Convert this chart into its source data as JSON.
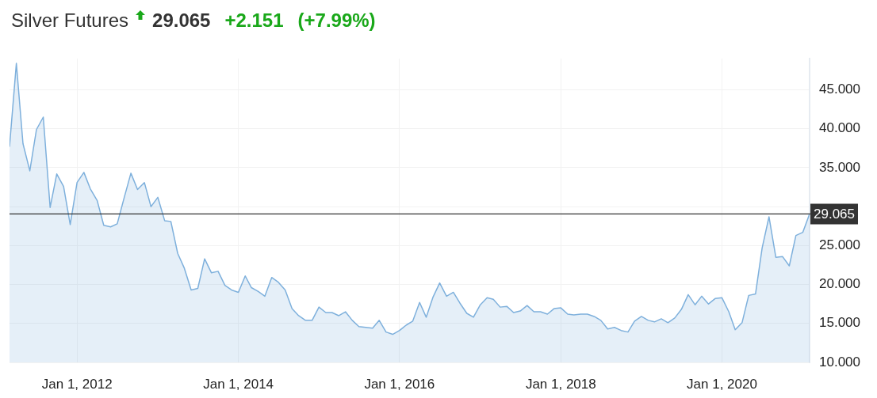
{
  "chart_data": {
    "type": "area",
    "title": "Silver Futures",
    "annotations": [
      "29.065",
      "+2.151",
      "(+7.99%)"
    ],
    "x": [
      "2011-03",
      "2011-04",
      "2011-05",
      "2011-06",
      "2011-07",
      "2011-08",
      "2011-09",
      "2011-10",
      "2011-11",
      "2011-12",
      "2012-01",
      "2012-02",
      "2012-03",
      "2012-04",
      "2012-05",
      "2012-06",
      "2012-07",
      "2012-08",
      "2012-09",
      "2012-10",
      "2012-11",
      "2012-12",
      "2013-01",
      "2013-02",
      "2013-03",
      "2013-04",
      "2013-05",
      "2013-06",
      "2013-07",
      "2013-08",
      "2013-09",
      "2013-10",
      "2013-11",
      "2013-12",
      "2014-01",
      "2014-02",
      "2014-03",
      "2014-04",
      "2014-05",
      "2014-06",
      "2014-07",
      "2014-08",
      "2014-09",
      "2014-10",
      "2014-11",
      "2014-12",
      "2015-01",
      "2015-02",
      "2015-03",
      "2015-04",
      "2015-05",
      "2015-06",
      "2015-07",
      "2015-08",
      "2015-09",
      "2015-10",
      "2015-11",
      "2015-12",
      "2016-01",
      "2016-02",
      "2016-03",
      "2016-04",
      "2016-05",
      "2016-06",
      "2016-07",
      "2016-08",
      "2016-09",
      "2016-10",
      "2016-11",
      "2016-12",
      "2017-01",
      "2017-02",
      "2017-03",
      "2017-04",
      "2017-05",
      "2017-06",
      "2017-07",
      "2017-08",
      "2017-09",
      "2017-10",
      "2017-11",
      "2017-12",
      "2018-01",
      "2018-02",
      "2018-03",
      "2018-04",
      "2018-05",
      "2018-06",
      "2018-07",
      "2018-08",
      "2018-09",
      "2018-10",
      "2018-11",
      "2018-12",
      "2019-01",
      "2019-02",
      "2019-03",
      "2019-04",
      "2019-05",
      "2019-06",
      "2019-07",
      "2019-08",
      "2019-09",
      "2019-10",
      "2019-11",
      "2019-12",
      "2020-01",
      "2020-02",
      "2020-03",
      "2020-04",
      "2020-05",
      "2020-06",
      "2020-07",
      "2020-08",
      "2020-09",
      "2020-10",
      "2020-11",
      "2020-12",
      "2021-01",
      "2021-02"
    ],
    "series": [
      {
        "color": "#7eb0dc",
        "values": [
          37.7,
          48.4,
          38.1,
          34.6,
          39.9,
          41.5,
          29.9,
          34.2,
          32.6,
          27.7,
          33.1,
          34.4,
          32.3,
          30.8,
          27.6,
          27.4,
          27.8,
          31.1,
          34.3,
          32.2,
          33.1,
          30.0,
          31.2,
          28.2,
          28.1,
          24.0,
          22.1,
          19.3,
          19.5,
          23.3,
          21.5,
          21.7,
          19.9,
          19.3,
          19.0,
          21.1,
          19.6,
          19.1,
          18.5,
          20.9,
          20.3,
          19.3,
          16.9,
          16.0,
          15.4,
          15.4,
          17.1,
          16.4,
          16.4,
          16.0,
          16.5,
          15.4,
          14.6,
          14.5,
          14.4,
          15.4,
          13.9,
          13.6,
          14.1,
          14.8,
          15.3,
          17.7,
          15.8,
          18.4,
          20.2,
          18.5,
          19.0,
          17.6,
          16.3,
          15.8,
          17.4,
          18.3,
          18.1,
          17.1,
          17.2,
          16.4,
          16.6,
          17.3,
          16.5,
          16.5,
          16.2,
          16.9,
          17.0,
          16.2,
          16.1,
          16.2,
          16.2,
          15.9,
          15.4,
          14.3,
          14.5,
          14.1,
          13.9,
          15.3,
          15.9,
          15.4,
          15.2,
          15.6,
          15.1,
          15.7,
          16.8,
          18.7,
          17.4,
          18.5,
          17.5,
          18.2,
          18.3,
          16.5,
          14.2,
          15.1,
          18.6,
          18.8,
          24.7,
          28.7,
          23.5,
          23.6,
          22.4,
          26.3,
          26.7,
          29.065
        ]
      }
    ],
    "xlim": [
      "2011-03",
      "2021-02"
    ],
    "xticks": [
      {
        "value": "2012-01-01",
        "label": "Jan 1, 2012"
      },
      {
        "value": "2014-01-01",
        "label": "Jan 1, 2014"
      },
      {
        "value": "2016-01-01",
        "label": "Jan 1, 2016"
      },
      {
        "value": "2018-01-01",
        "label": "Jan 1, 2018"
      },
      {
        "value": "2020-01-01",
        "label": "Jan 1, 2020"
      }
    ],
    "ylim": [
      10,
      49
    ],
    "yticks": [
      {
        "value": 10,
        "label": "10.000"
      },
      {
        "value": 15,
        "label": "15.000"
      },
      {
        "value": 20,
        "label": "20.000"
      },
      {
        "value": 25,
        "label": "25.000"
      },
      {
        "value": 30,
        "label": null
      },
      {
        "value": 35,
        "label": "35.000"
      },
      {
        "value": 40,
        "label": "40.000"
      },
      {
        "value": 45,
        "label": "45.000"
      }
    ],
    "ref_lines": [
      {
        "axis": "y",
        "value": 29.065,
        "label": "29.065",
        "color": "#333333"
      }
    ],
    "grid": true,
    "legend": false,
    "marker": "none",
    "line_style": "solid"
  }
}
